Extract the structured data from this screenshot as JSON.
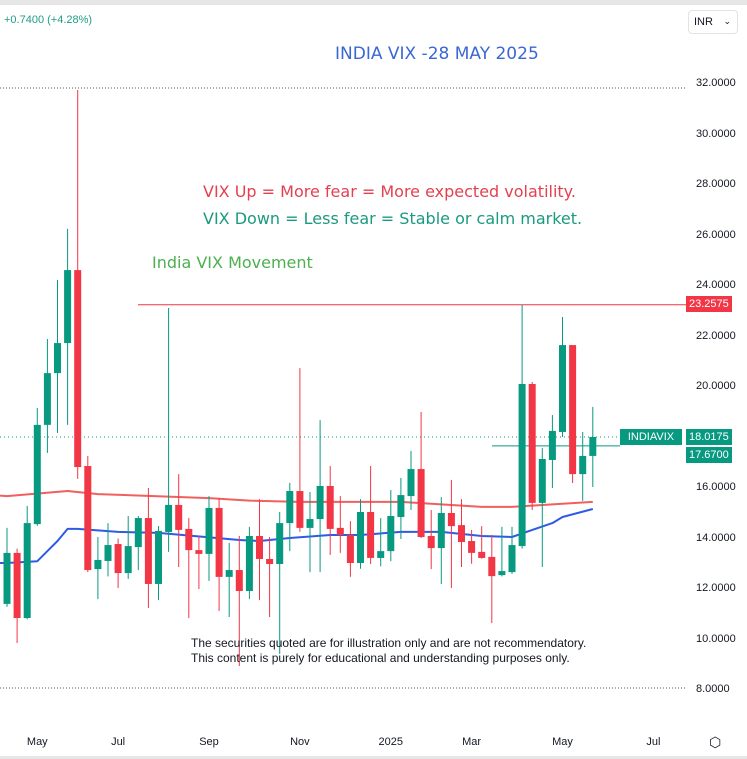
{
  "header": {
    "change_text": "+0.7400 (+4.28%)",
    "currency": "INR",
    "currency_icon": "chevron-down-icon"
  },
  "annotations": {
    "title": "INDIA VIX -28 MAY 2025",
    "vix_up": "VIX Up = More fear = More expected volatility.",
    "vix_down": "VIX Down = Less fear = Stable or calm market.",
    "movement": "India VIX Movement",
    "disclaimer_1": "The securities quoted are for illustration only and are not recommendatory.",
    "disclaimer_2": "This content is purely for educational and understanding purposes only."
  },
  "settings_icon": "gear-icon",
  "chart_data": {
    "type": "candlestick",
    "interval": "weekly",
    "symbol": "INDIAVIX",
    "ylim": [
      8,
      32
    ],
    "y_ticks": [
      "32.0000",
      "30.0000",
      "28.0000",
      "26.0000",
      "24.0000",
      "22.0000",
      "20.0000",
      "16.0000",
      "14.0000",
      "12.0000",
      "10.0000",
      "8.0000"
    ],
    "x_ticks": [
      {
        "label": "May",
        "date": "2024-05-06"
      },
      {
        "label": "Jul",
        "date": "2024-07-01"
      },
      {
        "label": "Sep",
        "date": "2024-09-02"
      },
      {
        "label": "Nov",
        "date": "2024-11-04"
      },
      {
        "label": "2025",
        "date": "2025-01-06"
      },
      {
        "label": "Mar",
        "date": "2025-03-03"
      },
      {
        "label": "May",
        "date": "2025-05-05"
      },
      {
        "label": "Jul",
        "date": "2025-07-07"
      }
    ],
    "price_labels": {
      "resistance": "23.2575",
      "symbol_tag": "INDIAVIX",
      "last_price": "18.0175",
      "prev_close": "17.6700"
    },
    "levels": {
      "resistance": 23.2575,
      "last_price": 18.0175,
      "prev_close": 17.67
    },
    "colors": {
      "up": "#089981",
      "down": "#f23645",
      "ma_slow": "#f0605f",
      "ma_fast": "#2e5be6",
      "title": "#3a67d6"
    },
    "candles": [
      {
        "d": "2024-04-15",
        "o": 11.41,
        "h": 14.42,
        "l": 11.29,
        "c": 13.43
      },
      {
        "d": "2024-04-22",
        "o": 13.43,
        "h": 13.6,
        "l": 9.86,
        "c": 10.85
      },
      {
        "d": "2024-04-29",
        "o": 10.85,
        "h": 15.29,
        "l": 10.8,
        "c": 14.61
      },
      {
        "d": "2024-05-06",
        "o": 14.57,
        "h": 19.17,
        "l": 14.5,
        "c": 18.5
      },
      {
        "d": "2024-05-13",
        "o": 18.5,
        "h": 21.9,
        "l": 17.39,
        "c": 20.55
      },
      {
        "d": "2024-05-20",
        "o": 20.55,
        "h": 24.24,
        "l": 18.18,
        "c": 21.74
      },
      {
        "d": "2024-05-27",
        "o": 21.74,
        "h": 26.26,
        "l": 18.5,
        "c": 24.63
      },
      {
        "d": "2024-06-03",
        "o": 24.63,
        "h": 31.76,
        "l": 16.36,
        "c": 16.83
      },
      {
        "d": "2024-06-10",
        "o": 16.87,
        "h": 17.27,
        "l": 12.67,
        "c": 12.75
      },
      {
        "d": "2024-06-17",
        "o": 12.79,
        "h": 14.06,
        "l": 11.6,
        "c": 13.15
      },
      {
        "d": "2024-06-24",
        "o": 13.11,
        "h": 14.61,
        "l": 12.5,
        "c": 13.74
      },
      {
        "d": "2024-07-01",
        "o": 13.78,
        "h": 14.0,
        "l": 12.04,
        "c": 12.63
      },
      {
        "d": "2024-07-08",
        "o": 12.63,
        "h": 14.89,
        "l": 12.4,
        "c": 13.7
      },
      {
        "d": "2024-07-15",
        "o": 13.66,
        "h": 14.89,
        "l": 12.75,
        "c": 14.81
      },
      {
        "d": "2024-07-22",
        "o": 14.81,
        "h": 16.0,
        "l": 11.25,
        "c": 12.2
      },
      {
        "d": "2024-07-29",
        "o": 12.2,
        "h": 14.49,
        "l": 11.56,
        "c": 14.3
      },
      {
        "d": "2024-08-05",
        "o": 14.26,
        "h": 23.13,
        "l": 13.47,
        "c": 15.33
      },
      {
        "d": "2024-08-12",
        "o": 15.33,
        "h": 16.55,
        "l": 12.87,
        "c": 14.34
      },
      {
        "d": "2024-08-19",
        "o": 14.38,
        "h": 14.81,
        "l": 10.85,
        "c": 13.54
      },
      {
        "d": "2024-08-26",
        "o": 13.54,
        "h": 14.1,
        "l": 12.0,
        "c": 13.39
      },
      {
        "d": "2024-09-02",
        "o": 13.39,
        "h": 15.68,
        "l": 12.32,
        "c": 15.21
      },
      {
        "d": "2024-09-09",
        "o": 15.21,
        "h": 15.6,
        "l": 11.13,
        "c": 12.48
      },
      {
        "d": "2024-09-16",
        "o": 12.48,
        "h": 13.82,
        "l": 10.89,
        "c": 12.75
      },
      {
        "d": "2024-09-23",
        "o": 12.75,
        "h": 14.1,
        "l": 8.95,
        "c": 11.92
      },
      {
        "d": "2024-09-30",
        "o": 11.92,
        "h": 14.46,
        "l": 11.6,
        "c": 14.1
      },
      {
        "d": "2024-10-07",
        "o": 14.1,
        "h": 15.56,
        "l": 11.56,
        "c": 13.19
      },
      {
        "d": "2024-10-14",
        "o": 13.19,
        "h": 14.06,
        "l": 10.89,
        "c": 12.99
      },
      {
        "d": "2024-10-21",
        "o": 12.99,
        "h": 15.05,
        "l": 9.43,
        "c": 14.61
      },
      {
        "d": "2024-10-28",
        "o": 14.61,
        "h": 16.2,
        "l": 13.5,
        "c": 15.88
      },
      {
        "d": "2024-11-04",
        "o": 15.88,
        "h": 20.75,
        "l": 14.26,
        "c": 14.42
      },
      {
        "d": "2024-11-11",
        "o": 14.42,
        "h": 15.84,
        "l": 12.67,
        "c": 14.77
      },
      {
        "d": "2024-11-18",
        "o": 14.77,
        "h": 18.69,
        "l": 12.67,
        "c": 16.08
      },
      {
        "d": "2024-11-25",
        "o": 16.08,
        "h": 16.87,
        "l": 13.35,
        "c": 14.38
      },
      {
        "d": "2024-12-02",
        "o": 14.42,
        "h": 15.68,
        "l": 13.43,
        "c": 14.14
      },
      {
        "d": "2024-12-09",
        "o": 14.14,
        "h": 14.69,
        "l": 12.48,
        "c": 13.03
      },
      {
        "d": "2024-12-16",
        "o": 13.03,
        "h": 15.56,
        "l": 12.8,
        "c": 15.05
      },
      {
        "d": "2024-12-23",
        "o": 15.05,
        "h": 16.87,
        "l": 12.99,
        "c": 13.23
      },
      {
        "d": "2024-12-30",
        "o": 13.23,
        "h": 14.81,
        "l": 12.9,
        "c": 13.5
      },
      {
        "d": "2025-01-06",
        "o": 13.5,
        "h": 15.92,
        "l": 13.1,
        "c": 14.89
      },
      {
        "d": "2025-01-13",
        "o": 14.85,
        "h": 16.4,
        "l": 13.98,
        "c": 15.72
      },
      {
        "d": "2025-01-20",
        "o": 15.68,
        "h": 17.47,
        "l": 15.13,
        "c": 16.75
      },
      {
        "d": "2025-01-27",
        "o": 16.75,
        "h": 19.01,
        "l": 14.02,
        "c": 14.06
      },
      {
        "d": "2025-02-03",
        "o": 14.1,
        "h": 15.13,
        "l": 12.79,
        "c": 13.62
      },
      {
        "d": "2025-02-10",
        "o": 13.62,
        "h": 15.64,
        "l": 12.2,
        "c": 15.01
      },
      {
        "d": "2025-02-17",
        "o": 15.01,
        "h": 16.32,
        "l": 12.04,
        "c": 14.49
      },
      {
        "d": "2025-02-24",
        "o": 14.53,
        "h": 15.56,
        "l": 12.87,
        "c": 13.86
      },
      {
        "d": "2025-03-03",
        "o": 13.9,
        "h": 14.34,
        "l": 13.0,
        "c": 13.43
      },
      {
        "d": "2025-03-10",
        "o": 13.47,
        "h": 14.49,
        "l": 13.2,
        "c": 13.23
      },
      {
        "d": "2025-03-17",
        "o": 13.27,
        "h": 14.14,
        "l": 10.65,
        "c": 12.51
      },
      {
        "d": "2025-03-24",
        "o": 12.55,
        "h": 14.46,
        "l": 12.5,
        "c": 12.71
      },
      {
        "d": "2025-03-31",
        "o": 12.67,
        "h": 14.46,
        "l": 12.6,
        "c": 13.74
      },
      {
        "d": "2025-04-07",
        "o": 13.7,
        "h": 23.25,
        "l": 13.6,
        "c": 20.12
      },
      {
        "d": "2025-04-14",
        "o": 20.12,
        "h": 20.2,
        "l": 15.13,
        "c": 15.41
      },
      {
        "d": "2025-04-21",
        "o": 15.41,
        "h": 17.58,
        "l": 12.87,
        "c": 17.15
      },
      {
        "d": "2025-04-28",
        "o": 17.11,
        "h": 18.89,
        "l": 16.0,
        "c": 18.26
      },
      {
        "d": "2025-05-05",
        "o": 18.22,
        "h": 22.77,
        "l": 18.02,
        "c": 21.66
      },
      {
        "d": "2025-05-12",
        "o": 21.66,
        "h": 21.66,
        "l": 16.2,
        "c": 16.55
      },
      {
        "d": "2025-05-19",
        "o": 16.55,
        "h": 18.22,
        "l": 15.49,
        "c": 17.27
      },
      {
        "d": "2025-05-26",
        "o": 17.27,
        "h": 19.21,
        "l": 16.04,
        "c": 18.02
      }
    ],
    "ma_slow": [
      [
        "2024-04-01",
        15.7
      ],
      [
        "2024-04-15",
        15.68
      ],
      [
        "2024-05-27",
        15.88
      ],
      [
        "2024-06-17",
        15.76
      ],
      [
        "2024-09-02",
        15.6
      ],
      [
        "2024-09-30",
        15.5
      ],
      [
        "2024-11-04",
        15.45
      ],
      [
        "2025-01-13",
        15.45
      ],
      [
        "2025-03-10",
        15.25
      ],
      [
        "2025-03-31",
        15.25
      ],
      [
        "2025-05-26",
        15.45
      ]
    ],
    "ma_fast": [
      [
        "2024-04-01",
        13.03
      ],
      [
        "2024-04-15",
        13.03
      ],
      [
        "2024-05-06",
        13.1
      ],
      [
        "2024-05-13",
        13.5
      ],
      [
        "2024-05-20",
        13.9
      ],
      [
        "2024-05-27",
        14.38
      ],
      [
        "2024-06-03",
        14.38
      ],
      [
        "2024-07-01",
        14.26
      ],
      [
        "2024-07-29",
        14.22
      ],
      [
        "2024-09-23",
        13.94
      ],
      [
        "2024-10-07",
        13.9
      ],
      [
        "2024-10-28",
        14.02
      ],
      [
        "2024-11-25",
        14.14
      ],
      [
        "2024-12-16",
        14.14
      ],
      [
        "2025-01-13",
        14.26
      ],
      [
        "2025-02-10",
        14.26
      ],
      [
        "2025-03-10",
        14.1
      ],
      [
        "2025-03-31",
        14.06
      ],
      [
        "2025-04-14",
        14.34
      ],
      [
        "2025-04-28",
        14.61
      ],
      [
        "2025-05-05",
        14.85
      ],
      [
        "2025-05-26",
        15.17
      ]
    ]
  }
}
